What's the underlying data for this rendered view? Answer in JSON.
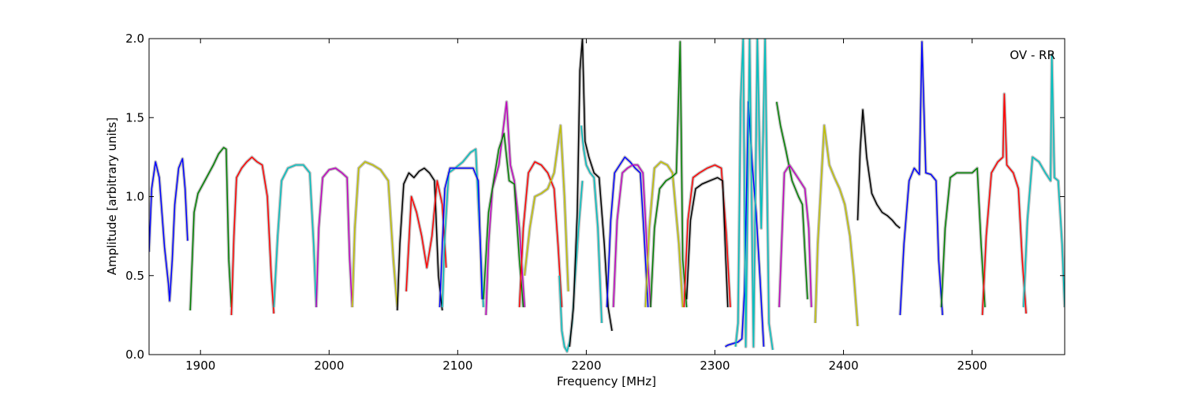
{
  "chart_data": {
    "type": "line",
    "title": "",
    "annotation": "OV - RR",
    "xlabel": "Frequency [MHz]",
    "ylabel": "Amplitude [arbitrary units]",
    "xlim": [
      1860,
      2572
    ],
    "ylim": [
      0.0,
      2.0
    ],
    "x_ticks": [
      1900,
      2000,
      2100,
      2200,
      2300,
      2400,
      2500
    ],
    "y_ticks": [
      0.0,
      0.5,
      1.0,
      1.5,
      2.0
    ],
    "x_tick_labels": [
      "1900",
      "2000",
      "2100",
      "2200",
      "2300",
      "2400",
      "2500"
    ],
    "y_tick_labels": [
      "0.0",
      "0.5",
      "1.0",
      "1.5",
      "2.0"
    ],
    "grid": false,
    "legend": "none",
    "background_color": "#c0c0c0",
    "series": [
      {
        "color": "#0000ff",
        "x": [
          1860,
          1862,
          1865,
          1868,
          1872,
          1875,
          1876,
          1878,
          1880,
          1883,
          1886,
          1888,
          1890
        ],
        "y": [
          0.65,
          1.05,
          1.22,
          1.12,
          0.68,
          0.45,
          0.34,
          0.6,
          0.95,
          1.18,
          1.24,
          1.05,
          0.72
        ]
      },
      {
        "color": "#008000",
        "x": [
          1892,
          1895,
          1898,
          1902,
          1906,
          1910,
          1914,
          1918,
          1920,
          1922,
          1924
        ],
        "y": [
          0.28,
          0.9,
          1.02,
          1.08,
          1.14,
          1.2,
          1.27,
          1.31,
          1.3,
          0.6,
          0.3
        ]
      },
      {
        "color": "#ff0000",
        "x": [
          1924,
          1926,
          1928,
          1932,
          1936,
          1940,
          1944,
          1948,
          1952,
          1955,
          1957
        ],
        "y": [
          0.25,
          0.75,
          1.12,
          1.18,
          1.22,
          1.25,
          1.22,
          1.2,
          1.0,
          0.5,
          0.26
        ]
      },
      {
        "color": "#00bfbf",
        "x": [
          1957,
          1960,
          1963,
          1968,
          1974,
          1980,
          1985,
          1988,
          1990
        ],
        "y": [
          0.3,
          0.75,
          1.1,
          1.18,
          1.2,
          1.2,
          1.15,
          0.7,
          0.3
        ]
      },
      {
        "color": "#bf00bf",
        "x": [
          1990,
          1992,
          1995,
          2000,
          2005,
          2010,
          2014,
          2016,
          2018
        ],
        "y": [
          0.3,
          0.8,
          1.12,
          1.17,
          1.18,
          1.15,
          1.12,
          0.6,
          0.3
        ]
      },
      {
        "color": "#bfbf00",
        "x": [
          2018,
          2020,
          2023,
          2028,
          2034,
          2040,
          2046,
          2050,
          2053
        ],
        "y": [
          0.3,
          0.8,
          1.18,
          1.22,
          1.2,
          1.17,
          1.1,
          0.6,
          0.3
        ]
      },
      {
        "color": "#000000",
        "x": [
          2053,
          2055,
          2058,
          2062,
          2066,
          2070,
          2074,
          2078,
          2082,
          2085,
          2088
        ],
        "y": [
          0.28,
          0.7,
          1.08,
          1.15,
          1.12,
          1.16,
          1.18,
          1.15,
          1.1,
          0.5,
          0.28
        ]
      },
      {
        "color": "#ff0000",
        "x": [
          2060,
          2064,
          2068,
          2072,
          2076,
          2080,
          2084,
          2088,
          2091
        ],
        "y": [
          0.4,
          1.0,
          0.9,
          0.75,
          0.55,
          0.75,
          1.1,
          0.95,
          0.55
        ]
      },
      {
        "color": "#00bfbf",
        "x": [
          2088,
          2090,
          2093,
          2098,
          2104,
          2110,
          2114,
          2117,
          2120
        ],
        "y": [
          0.3,
          0.75,
          1.15,
          1.18,
          1.22,
          1.28,
          1.3,
          0.8,
          0.3
        ]
      },
      {
        "color": "#0000ff",
        "x": [
          2086,
          2090,
          2094,
          2100,
          2106,
          2112,
          2116,
          2119
        ],
        "y": [
          0.3,
          1.05,
          1.18,
          1.18,
          1.18,
          1.18,
          1.1,
          0.35
        ]
      },
      {
        "color": "#bf00bf",
        "x": [
          2122,
          2124,
          2127,
          2132,
          2138,
          2141,
          2144,
          2148,
          2152
        ],
        "y": [
          0.25,
          0.7,
          1.05,
          1.2,
          1.6,
          1.2,
          1.1,
          0.8,
          0.3
        ]
      },
      {
        "color": "#008000",
        "x": [
          2120,
          2124,
          2128,
          2132,
          2136,
          2140,
          2144,
          2148,
          2151
        ],
        "y": [
          0.35,
          0.9,
          1.1,
          1.3,
          1.4,
          1.1,
          1.08,
          0.6,
          0.3
        ]
      },
      {
        "color": "#ff0000",
        "x": [
          2148,
          2151,
          2155,
          2160,
          2165,
          2170,
          2175,
          2178,
          2181
        ],
        "y": [
          0.3,
          0.8,
          1.15,
          1.22,
          1.2,
          1.15,
          1.05,
          0.7,
          0.3
        ]
      },
      {
        "color": "#bfbf00",
        "x": [
          2152,
          2156,
          2160,
          2165,
          2170,
          2175,
          2180,
          2183,
          2186
        ],
        "y": [
          0.5,
          0.8,
          1.0,
          1.02,
          1.05,
          1.15,
          1.45,
          1.0,
          0.4
        ]
      },
      {
        "color": "#00bfbf",
        "x": [
          2179,
          2181,
          2183,
          2185,
          2187,
          2189,
          2191,
          2194,
          2197
        ],
        "y": [
          0.5,
          0.15,
          0.05,
          0.02,
          0.08,
          0.2,
          0.45,
          0.8,
          1.1
        ]
      },
      {
        "color": "#000000",
        "x": [
          2187,
          2190,
          2193,
          2195,
          2197,
          2199,
          2202,
          2206,
          2210,
          2214,
          2217,
          2220
        ],
        "y": [
          0.05,
          0.3,
          0.9,
          1.8,
          2.0,
          1.35,
          1.25,
          1.15,
          1.12,
          0.7,
          0.3,
          0.15
        ]
      },
      {
        "color": "#00bfbf",
        "x": [
          2196,
          2198,
          2200,
          2203,
          2206,
          2209,
          2212
        ],
        "y": [
          1.45,
          1.3,
          1.2,
          1.15,
          1.12,
          0.8,
          0.2
        ]
      },
      {
        "color": "#0000ff",
        "x": [
          2216,
          2219,
          2222,
          2226,
          2230,
          2234,
          2238,
          2242,
          2245,
          2248
        ],
        "y": [
          0.3,
          0.85,
          1.15,
          1.2,
          1.25,
          1.22,
          1.18,
          1.15,
          0.75,
          0.3
        ]
      },
      {
        "color": "#bf00bf",
        "x": [
          2221,
          2224,
          2228,
          2232,
          2236,
          2240,
          2244,
          2247,
          2250
        ],
        "y": [
          0.3,
          0.85,
          1.15,
          1.18,
          1.2,
          1.2,
          1.15,
          0.7,
          0.3
        ]
      },
      {
        "color": "#bfbf00",
        "x": [
          2246,
          2249,
          2253,
          2258,
          2263,
          2267,
          2272,
          2275
        ],
        "y": [
          0.3,
          0.8,
          1.18,
          1.22,
          1.2,
          1.15,
          0.7,
          0.3
        ]
      },
      {
        "color": "#008000",
        "x": [
          2250,
          2253,
          2257,
          2262,
          2266,
          2270,
          2273,
          2275,
          2278
        ],
        "y": [
          0.3,
          0.8,
          1.05,
          1.1,
          1.12,
          1.15,
          1.98,
          0.6,
          0.3
        ]
      },
      {
        "color": "#ff0000",
        "x": [
          2276,
          2279,
          2283,
          2288,
          2294,
          2300,
          2305,
          2309,
          2312
        ],
        "y": [
          0.3,
          0.85,
          1.12,
          1.15,
          1.18,
          1.2,
          1.18,
          0.75,
          0.3
        ]
      },
      {
        "color": "#000000",
        "x": [
          2278,
          2281,
          2285,
          2290,
          2296,
          2302,
          2306,
          2308,
          2310
        ],
        "y": [
          0.35,
          0.85,
          1.05,
          1.08,
          1.1,
          1.12,
          1.1,
          0.7,
          0.3
        ]
      },
      {
        "color": "#0000ff",
        "x": [
          2308,
          2310,
          2314,
          2318,
          2321,
          2323,
          2326,
          2329,
          2332,
          2335,
          2338
        ],
        "y": [
          0.05,
          0.06,
          0.07,
          0.08,
          0.1,
          0.4,
          1.6,
          1.2,
          0.9,
          0.5,
          0.05
        ]
      },
      {
        "color": "#00bfbf",
        "x": [
          2316,
          2318,
          2320,
          2322,
          2324,
          2327,
          2330,
          2333,
          2336,
          2339,
          2342,
          2345
        ],
        "y": [
          0.05,
          0.2,
          1.6,
          2.0,
          0.05,
          2.0,
          0.05,
          2.0,
          0.8,
          2.0,
          0.2,
          0.03
        ]
      },
      {
        "color": "#008000",
        "x": [
          2348,
          2351,
          2355,
          2360,
          2365,
          2368,
          2370,
          2372
        ],
        "y": [
          1.6,
          1.45,
          1.3,
          1.1,
          1.0,
          0.95,
          0.65,
          0.35
        ]
      },
      {
        "color": "#bf00bf",
        "x": [
          2350,
          2354,
          2358,
          2362,
          2366,
          2370,
          2373,
          2375
        ],
        "y": [
          0.3,
          1.15,
          1.2,
          1.15,
          1.1,
          1.05,
          0.8,
          0.3
        ]
      },
      {
        "color": "#bfbf00",
        "x": [
          2378,
          2380,
          2382,
          2385,
          2389,
          2393,
          2397,
          2401,
          2405,
          2408,
          2411
        ],
        "y": [
          0.2,
          0.7,
          1.0,
          1.45,
          1.2,
          1.12,
          1.05,
          0.95,
          0.75,
          0.5,
          0.18
        ]
      },
      {
        "color": "#000000",
        "x": [
          2411,
          2413,
          2415,
          2418,
          2422,
          2426,
          2430,
          2434,
          2438,
          2441,
          2444
        ],
        "y": [
          0.85,
          1.3,
          1.55,
          1.25,
          1.02,
          0.95,
          0.9,
          0.88,
          0.85,
          0.82,
          0.8
        ]
      },
      {
        "color": "#0000ff",
        "x": [
          2444,
          2447,
          2451,
          2455,
          2459,
          2461,
          2464,
          2468,
          2472,
          2474,
          2477
        ],
        "y": [
          0.25,
          0.7,
          1.1,
          1.18,
          1.14,
          1.98,
          1.15,
          1.14,
          1.1,
          0.6,
          0.25
        ]
      },
      {
        "color": "#008000",
        "x": [
          2476,
          2479,
          2483,
          2488,
          2494,
          2500,
          2504,
          2507,
          2510
        ],
        "y": [
          0.3,
          0.8,
          1.12,
          1.15,
          1.15,
          1.15,
          1.18,
          0.7,
          0.3
        ]
      },
      {
        "color": "#ff0000",
        "x": [
          2508,
          2511,
          2515,
          2520,
          2524,
          2525,
          2527,
          2532,
          2536,
          2539,
          2542
        ],
        "y": [
          0.25,
          0.75,
          1.15,
          1.22,
          1.25,
          1.65,
          1.2,
          1.15,
          1.05,
          0.6,
          0.26
        ]
      },
      {
        "color": "#00bfbf",
        "x": [
          2540,
          2543,
          2547,
          2552,
          2557,
          2561,
          2562,
          2564,
          2567,
          2570,
          2572
        ],
        "y": [
          0.3,
          0.85,
          1.25,
          1.22,
          1.15,
          1.1,
          1.9,
          1.12,
          1.1,
          0.7,
          0.3
        ]
      }
    ]
  }
}
